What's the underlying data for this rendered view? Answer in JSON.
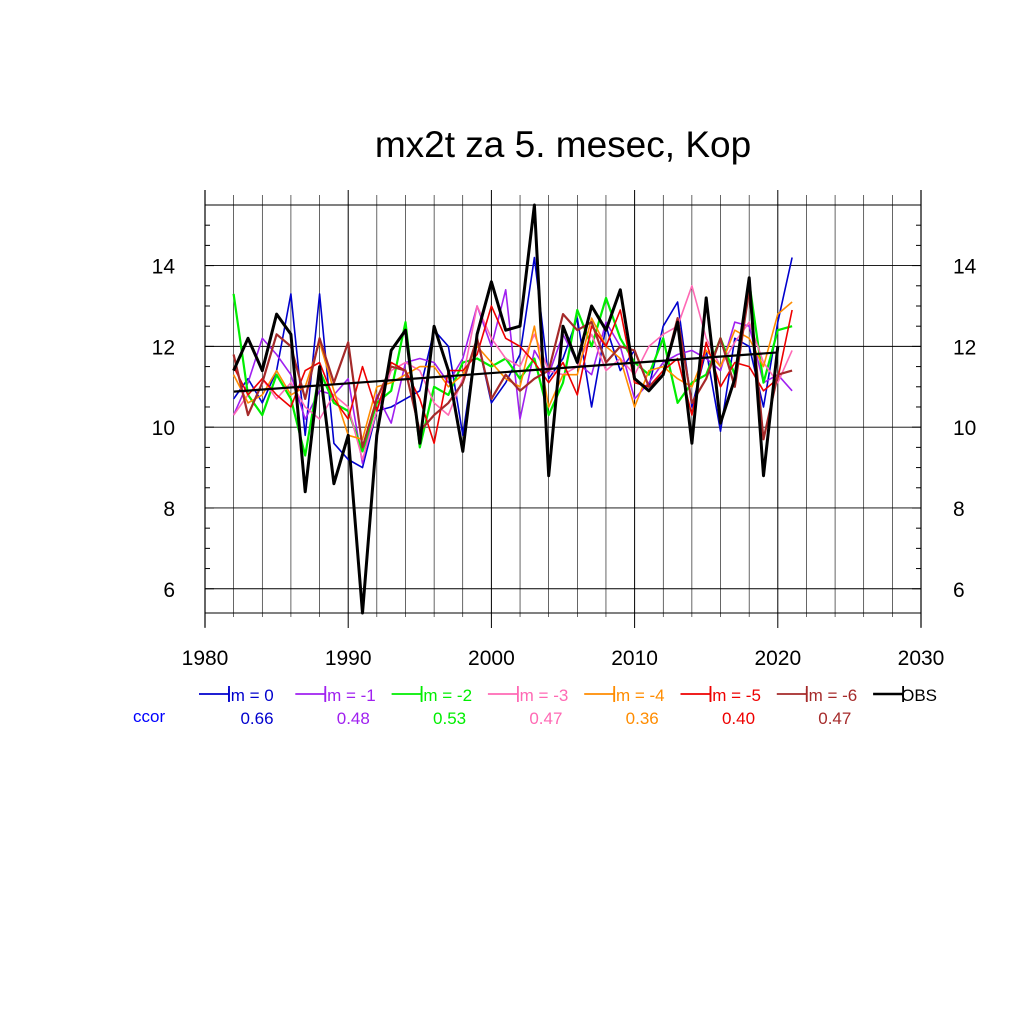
{
  "chart_data": {
    "type": "line",
    "title": "mx2t za 5. mesec, Kop",
    "xlabel": "",
    "ylabel": "",
    "xlim": [
      1980,
      2030
    ],
    "ylim": [
      5.4,
      15.5
    ],
    "x_ticks": [
      1980,
      1990,
      2000,
      2010,
      2020,
      2030
    ],
    "y_ticks": [
      6,
      8,
      10,
      12,
      14
    ],
    "grid": true,
    "legend_placement": "bottom",
    "ccor_label": "ccor",
    "ccor_label_color": "#0000ff",
    "x": [
      1982,
      1983,
      1984,
      1985,
      1986,
      1987,
      1988,
      1989,
      1990,
      1991,
      1992,
      1993,
      1994,
      1995,
      1996,
      1997,
      1998,
      1999,
      2000,
      2001,
      2002,
      2003,
      2004,
      2005,
      2006,
      2007,
      2008,
      2009,
      2010,
      2011,
      2012,
      2013,
      2014,
      2015,
      2016,
      2017,
      2018,
      2019,
      2020,
      2021
    ],
    "series": [
      {
        "name": "lm = 0",
        "ccor": "0.66",
        "color": "#0000cd",
        "width": 1.6,
        "values": [
          10.7,
          11.2,
          10.6,
          11.4,
          13.3,
          9.8,
          13.3,
          9.6,
          9.2,
          9.0,
          10.4,
          10.5,
          10.7,
          10.9,
          12.4,
          12.0,
          9.8,
          12.2,
          10.6,
          11.1,
          11.8,
          14.2,
          11.2,
          11.7,
          12.7,
          10.5,
          12.5,
          11.4,
          11.9,
          11.0,
          12.5,
          13.1,
          10.5,
          11.9,
          9.9,
          12.2,
          12.0,
          10.5,
          12.6,
          14.2
        ]
      },
      {
        "name": "lm = -1",
        "ccor": "0.48",
        "color": "#a020f0",
        "width": 1.6,
        "values": [
          10.3,
          11.1,
          12.2,
          11.8,
          11.3,
          10.2,
          10.9,
          10.8,
          11.2,
          9.1,
          10.8,
          10.1,
          11.6,
          11.7,
          11.6,
          11.1,
          11.7,
          13.0,
          12.0,
          13.4,
          10.2,
          11.9,
          11.3,
          12.3,
          11.6,
          11.3,
          12.6,
          12.0,
          10.7,
          11.1,
          11.6,
          11.8,
          11.9,
          11.7,
          11.4,
          12.6,
          12.5,
          11.1,
          11.3,
          10.9
        ]
      },
      {
        "name": "lm = -2",
        "ccor": "0.53",
        "color": "#00ee00",
        "width": 2.2,
        "values": [
          13.3,
          10.8,
          10.3,
          11.3,
          10.7,
          9.3,
          11.4,
          10.6,
          10.4,
          9.4,
          10.6,
          10.9,
          12.6,
          9.5,
          11.0,
          10.8,
          11.6,
          11.7,
          11.5,
          11.7,
          11.2,
          11.7,
          10.3,
          11.1,
          12.9,
          12.0,
          13.2,
          12.2,
          11.6,
          11.3,
          12.2,
          10.6,
          11.1,
          11.3,
          12.2,
          11.3,
          13.6,
          11.1,
          12.4,
          12.5
        ]
      },
      {
        "name": "lm = -3",
        "ccor": "0.47",
        "color": "#ff69b4",
        "width": 1.6,
        "values": [
          10.3,
          10.8,
          11.2,
          10.7,
          11.1,
          10.5,
          10.2,
          10.8,
          10.5,
          9.2,
          10.4,
          11.4,
          11.6,
          11.4,
          10.6,
          10.3,
          11.2,
          13.0,
          12.2,
          11.7,
          11.5,
          12.3,
          11.4,
          11.3,
          11.5,
          12.3,
          11.4,
          11.7,
          11.3,
          12.0,
          12.3,
          12.5,
          13.5,
          12.2,
          11.5,
          12.1,
          12.6,
          11.6,
          11.1,
          11.9
        ]
      },
      {
        "name": "lm = -4",
        "ccor": "0.36",
        "color": "#ff8c00",
        "width": 1.6,
        "values": [
          11.3,
          10.6,
          10.8,
          11.4,
          10.8,
          11.0,
          12.1,
          10.9,
          9.8,
          9.7,
          11.0,
          11.1,
          11.3,
          11.5,
          11.5,
          11.0,
          11.3,
          12.0,
          11.6,
          11.2,
          11.0,
          12.5,
          10.5,
          11.3,
          11.3,
          12.7,
          12.0,
          11.7,
          10.5,
          11.4,
          11.5,
          11.2,
          11.0,
          11.9,
          11.5,
          12.4,
          12.2,
          11.5,
          12.8,
          13.1
        ]
      },
      {
        "name": "lm = -5",
        "ccor": "0.40",
        "color": "#ee0000",
        "width": 1.6,
        "values": [
          11.5,
          10.8,
          11.2,
          10.8,
          10.5,
          11.4,
          11.6,
          10.7,
          10.2,
          11.5,
          10.4,
          11.6,
          11.4,
          10.7,
          9.6,
          11.4,
          11.4,
          11.8,
          13.0,
          12.2,
          12.0,
          11.6,
          11.1,
          11.6,
          10.8,
          12.5,
          12.0,
          12.9,
          11.1,
          11.0,
          11.4,
          11.7,
          10.3,
          12.1,
          11.0,
          11.6,
          11.5,
          10.9,
          11.2,
          12.9
        ]
      },
      {
        "name": "lm = -6",
        "ccor": "0.47",
        "color": "#a52a2a",
        "width": 2.2,
        "values": [
          11.8,
          10.3,
          11.1,
          12.3,
          12.0,
          10.7,
          12.2,
          11.1,
          12.1,
          9.5,
          10.7,
          11.5,
          11.4,
          9.9,
          10.3,
          10.6,
          11.1,
          12.2,
          10.7,
          11.3,
          10.9,
          11.2,
          11.4,
          12.8,
          12.4,
          12.6,
          11.6,
          12.0,
          11.9,
          11.0,
          11.3,
          12.7,
          10.6,
          11.2,
          12.2,
          11.0,
          13.4,
          9.7,
          11.3,
          11.4
        ]
      },
      {
        "name": "OBS",
        "ccor": "",
        "color": "#000000",
        "width": 3.0,
        "values": [
          11.4,
          12.2,
          11.4,
          12.8,
          12.3,
          8.4,
          11.5,
          8.6,
          9.8,
          5.4,
          9.8,
          11.9,
          12.4,
          9.6,
          12.5,
          11.4,
          9.4,
          12.3,
          13.6,
          12.4,
          12.5,
          15.5,
          8.8,
          12.5,
          11.6,
          13.0,
          12.4,
          13.4,
          11.2,
          10.9,
          11.3,
          12.6,
          9.6,
          13.2,
          10.1,
          11.2,
          13.7,
          8.8,
          12.0,
          null
        ]
      }
    ],
    "trend": {
      "x": [
        1982,
        2020
      ],
      "y": [
        10.88,
        11.85
      ],
      "color": "#000000"
    }
  }
}
